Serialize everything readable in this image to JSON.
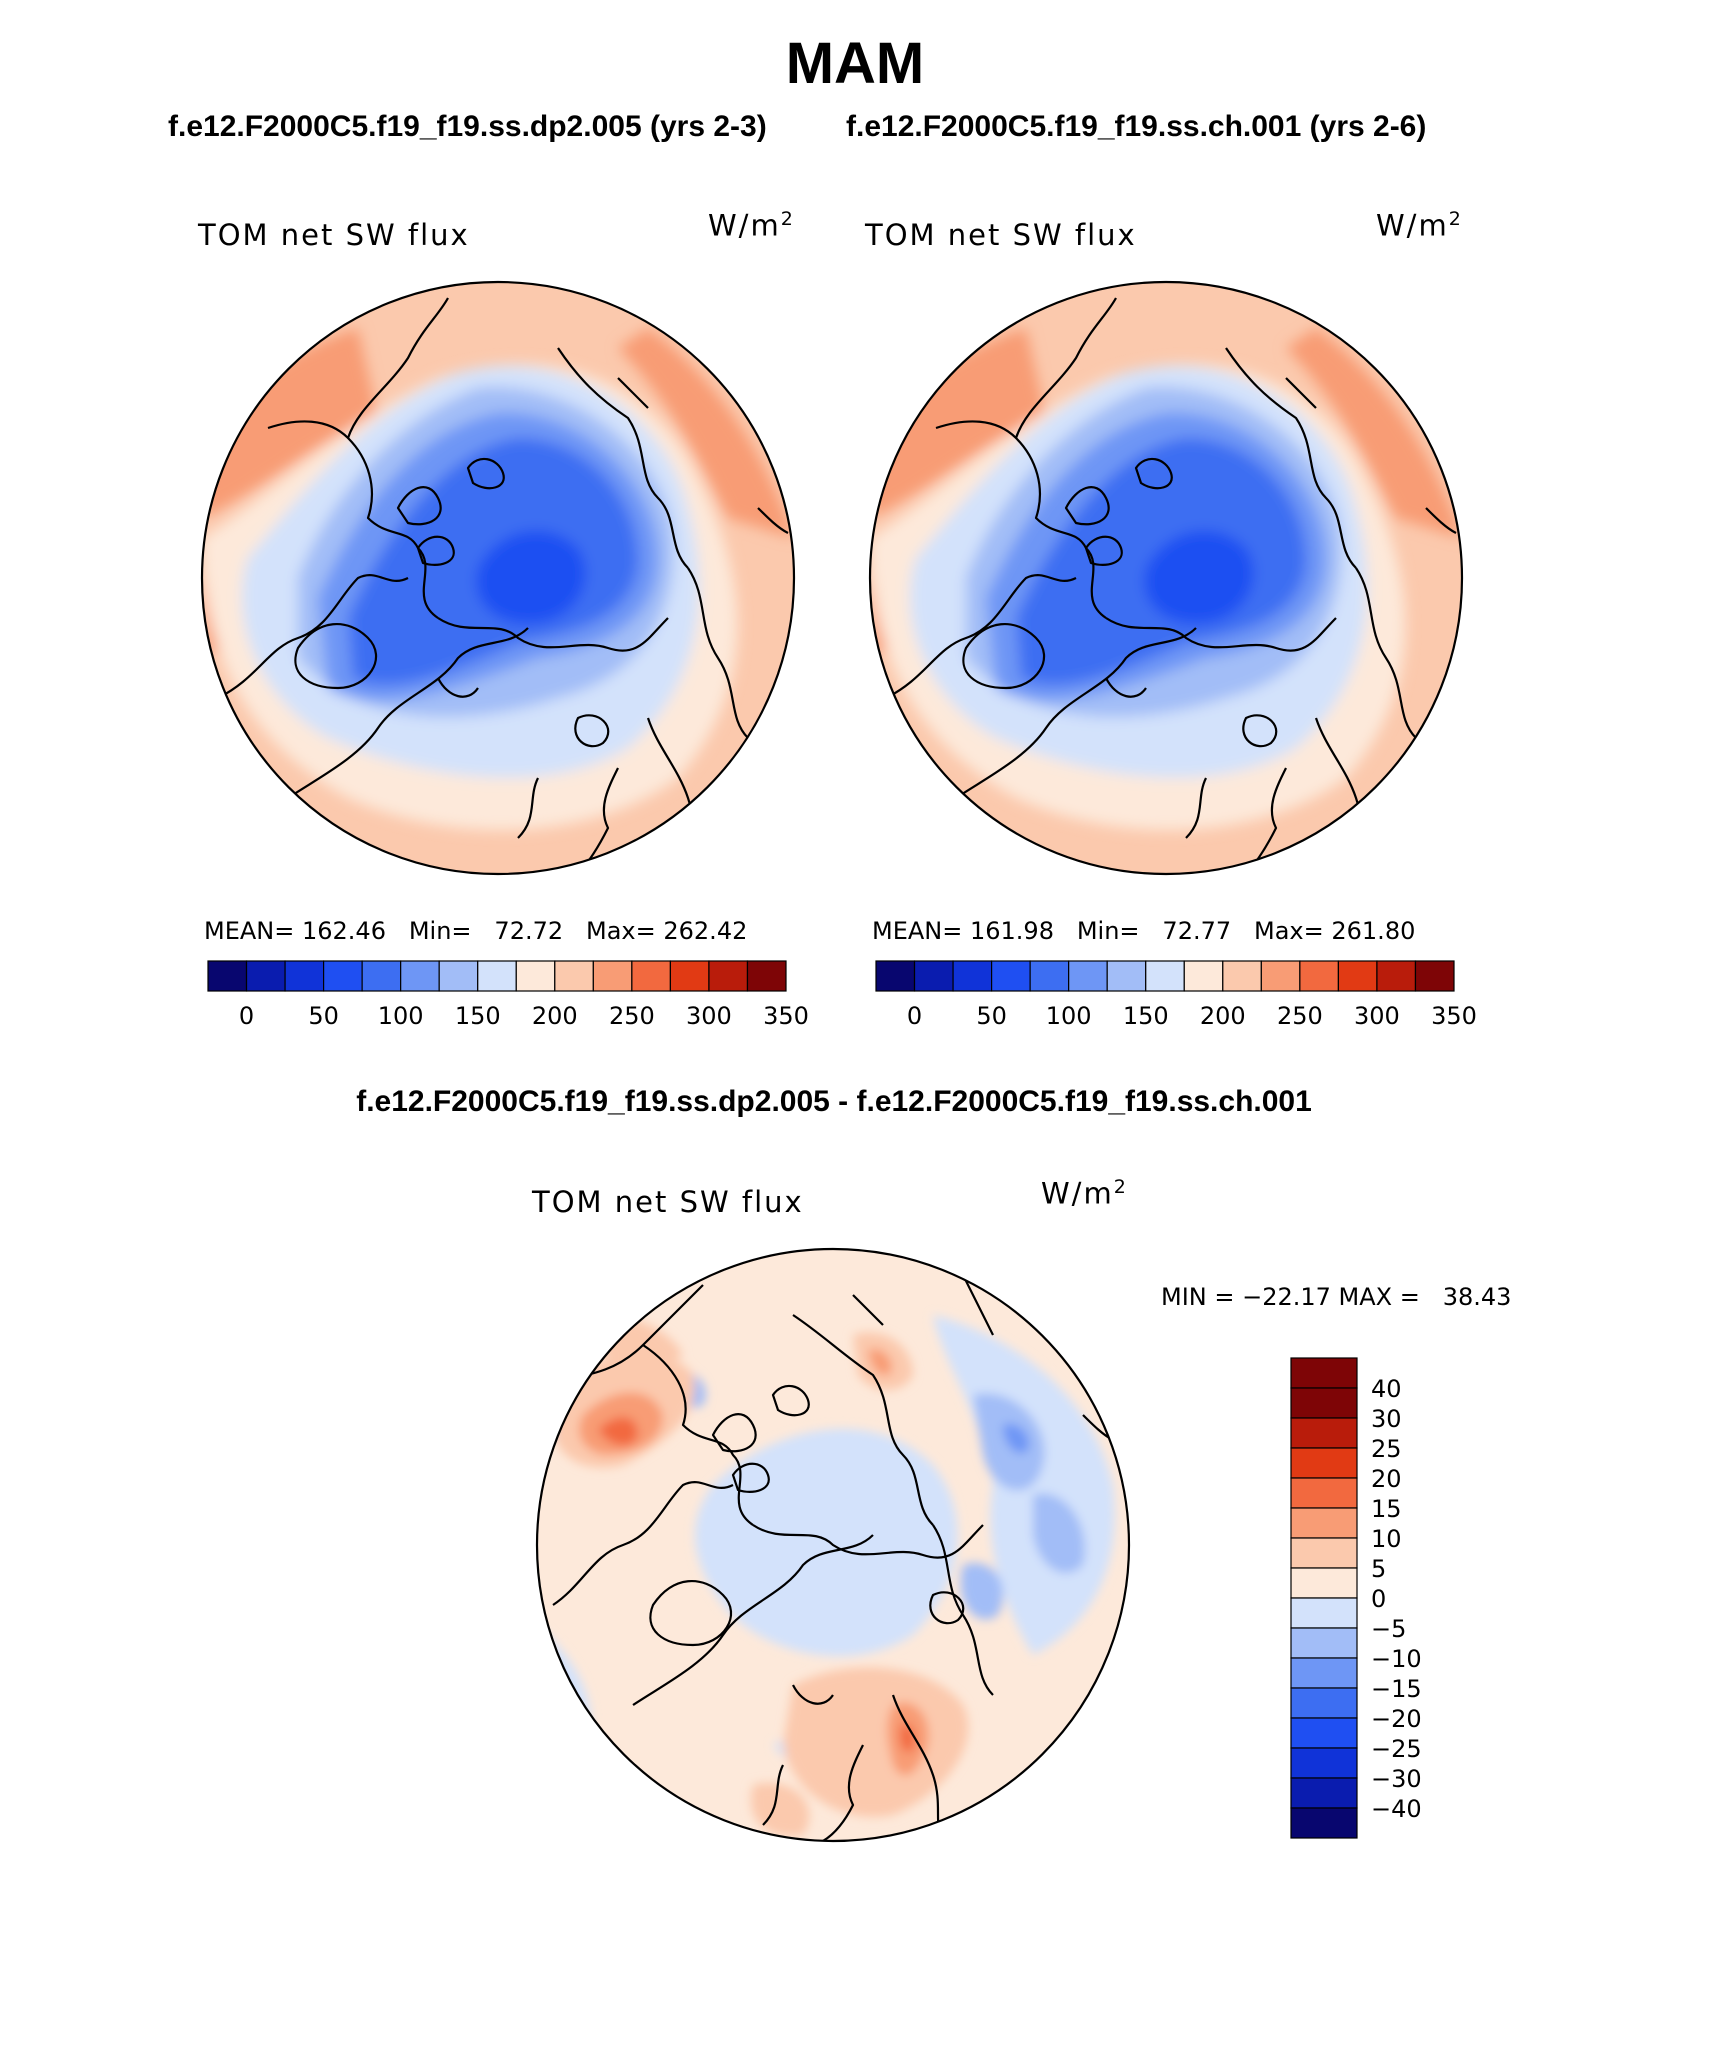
{
  "page": {
    "title": "MAM",
    "left_subtitle": "f.e12.F2000C5.f19_f19.ss.dp2.005 (yrs 2-3)",
    "right_subtitle": "f.e12.F2000C5.f19_f19.ss.ch.001 (yrs 2-6)",
    "diff_subtitle": "f.e12.F2000C5.f19_f19.ss.dp2.005 - f.e12.F2000C5.f19_f19.ss.ch.001"
  },
  "chart_data": [
    {
      "type": "heatmap",
      "projection": "north-polar-stereographic",
      "left_label": "TOM net SW flux",
      "units": "W/m2",
      "stats": {
        "mean": "162.46",
        "min": "72.72",
        "max": "262.42"
      },
      "stats_text": "MEAN= 162.46   Min=   72.72   Max= 262.42",
      "colorbar": {
        "orientation": "horizontal",
        "levels": [
          0,
          25,
          50,
          75,
          100,
          125,
          150,
          175,
          200,
          225,
          250,
          275,
          300,
          325,
          350
        ],
        "tick_labels": [
          "0",
          "50",
          "100",
          "150",
          "200",
          "250",
          "300",
          "350"
        ],
        "colors": [
          "#08066f",
          "#0a1caf",
          "#1033d8",
          "#1f4ff2",
          "#3d6ef2",
          "#6e96f5",
          "#a2bdf7",
          "#d3e2fb",
          "#fde9da",
          "#fbc9ad",
          "#f89c75",
          "#f2693f",
          "#e13a14",
          "#b91c0b",
          "#7e0506"
        ]
      }
    },
    {
      "type": "heatmap",
      "projection": "north-polar-stereographic",
      "left_label": "TOM net SW flux",
      "units": "W/m2",
      "stats": {
        "mean": "161.98",
        "min": "72.77",
        "max": "261.80"
      },
      "stats_text": "MEAN= 161.98   Min=   72.77   Max= 261.80",
      "colorbar": {
        "orientation": "horizontal",
        "levels": [
          0,
          25,
          50,
          75,
          100,
          125,
          150,
          175,
          200,
          225,
          250,
          275,
          300,
          325,
          350
        ],
        "tick_labels": [
          "0",
          "50",
          "100",
          "150",
          "200",
          "250",
          "300",
          "350"
        ],
        "colors": [
          "#08066f",
          "#0a1caf",
          "#1033d8",
          "#1f4ff2",
          "#3d6ef2",
          "#6e96f5",
          "#a2bdf7",
          "#d3e2fb",
          "#fde9da",
          "#fbc9ad",
          "#f89c75",
          "#f2693f",
          "#e13a14",
          "#b91c0b",
          "#7e0506"
        ]
      }
    },
    {
      "type": "heatmap",
      "projection": "north-polar-stereographic",
      "left_label": "TOM net SW flux",
      "units": "W/m2",
      "stats": {
        "min": "-22.17",
        "max": "38.43"
      },
      "stats_text": "MIN = −22.17 MAX =   38.43",
      "colorbar": {
        "orientation": "vertical",
        "levels": [
          -40,
          -30,
          -25,
          -20,
          -15,
          -10,
          -5,
          0,
          5,
          10,
          15,
          20,
          25,
          30,
          40
        ],
        "tick_labels": [
          "−40",
          "−30",
          "−25",
          "−20",
          "−15",
          "−10",
          "−5",
          "0",
          "5",
          "10",
          "15",
          "20",
          "25",
          "30",
          "40"
        ],
        "colors": [
          "#08066f",
          "#0a1caf",
          "#1033d8",
          "#1f4ff2",
          "#3d6ef2",
          "#6e96f5",
          "#a2bdf7",
          "#d3e2fb",
          "#fde9da",
          "#fbc9ad",
          "#f89c75",
          "#f2693f",
          "#e13a14",
          "#b91c0b",
          "#7e0506",
          "#7e0506"
        ]
      }
    }
  ]
}
